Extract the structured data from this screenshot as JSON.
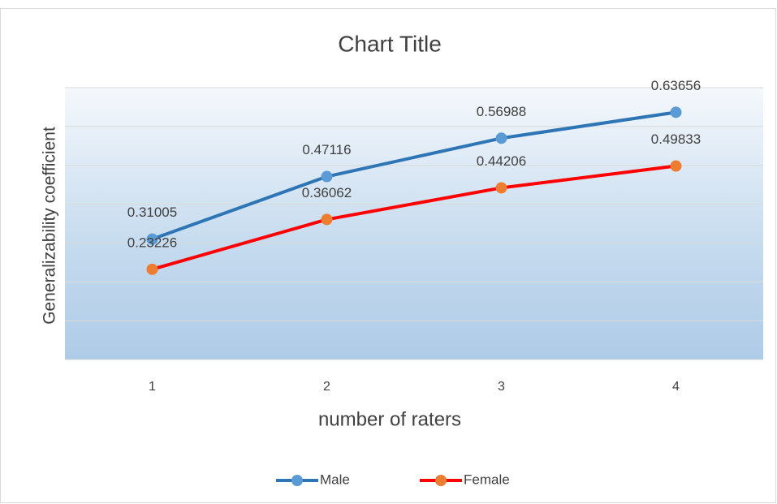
{
  "chart_data": {
    "type": "line",
    "title": "Chart Title",
    "x_label": "number of raters",
    "y_label": "Generalizability coefficient",
    "categories": [
      "1",
      "2",
      "3",
      "4"
    ],
    "series": [
      {
        "name": "Male",
        "color": "#2e75b6",
        "marker_color": "#5b9bd5",
        "values": [
          0.31005,
          0.47116,
          0.56988,
          0.63656
        ]
      },
      {
        "name": "Female",
        "color": "#ff0000",
        "marker_color": "#ed7d31",
        "values": [
          0.23226,
          0.36062,
          0.44206,
          0.49833
        ]
      }
    ],
    "ylim": [
      0,
      0.7
    ],
    "yticks": [
      0,
      0.1,
      0.2,
      0.3,
      0.4,
      0.5,
      0.6,
      0.7
    ],
    "grid": true,
    "legend": "bottom"
  }
}
